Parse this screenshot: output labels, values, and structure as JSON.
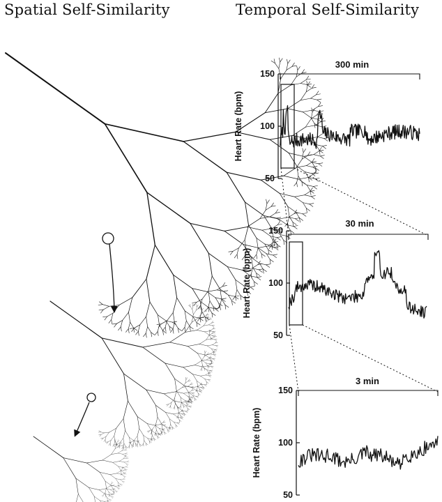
{
  "headings": {
    "left": "Spatial Self-Similarity",
    "right": "Temporal Self-Similarity"
  },
  "panels": [
    {
      "span_label": "300 min",
      "ylabel": "Heart Rate (bpm)",
      "yticks": [
        "150",
        "100",
        "50"
      ],
      "ylim": [
        50,
        150
      ]
    },
    {
      "span_label": "30 min",
      "ylabel": "Heart Rate (bpm)",
      "yticks": [
        "150",
        "100",
        "50"
      ],
      "ylim": [
        50,
        150
      ]
    },
    {
      "span_label": "3 min",
      "ylabel": "Heart Rate (bpm)",
      "yticks": [
        "150",
        "100",
        "50"
      ],
      "ylim": [
        50,
        150
      ]
    }
  ],
  "icons": {
    "tree": "branching-tree-icon",
    "zoom": "zoom-circle-icon",
    "arrow": "arrow-down-icon"
  }
}
